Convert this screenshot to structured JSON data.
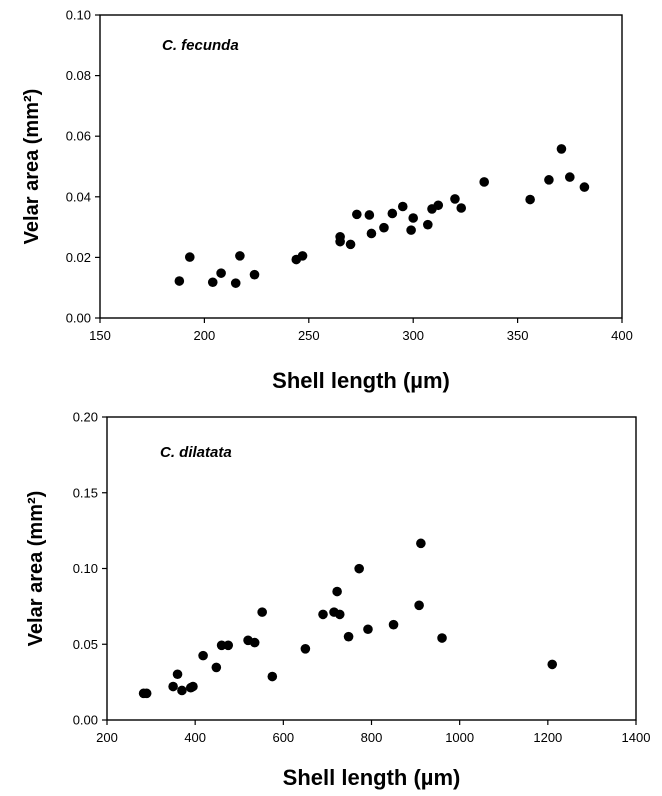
{
  "chart_data": [
    {
      "type": "scatter",
      "panel_label": "C. fecunda",
      "xlabel": "Shell length (µm)",
      "ylabel": "Velar area (mm²)",
      "xlim": [
        150,
        400
      ],
      "ylim": [
        0,
        0.1
      ],
      "xticks": [
        "150",
        "200",
        "250",
        "300",
        "350",
        "400"
      ],
      "yticks": [
        "0.00",
        "0.02",
        "0.04",
        "0.06",
        "0.08",
        "0.10"
      ],
      "grid": false,
      "points": [
        [
          188,
          0.0122
        ],
        [
          193,
          0.0201
        ],
        [
          204,
          0.0118
        ],
        [
          208,
          0.0148
        ],
        [
          215,
          0.0115
        ],
        [
          217,
          0.0205
        ],
        [
          224,
          0.0143
        ],
        [
          244,
          0.0193
        ],
        [
          247,
          0.0205
        ],
        [
          265,
          0.0268
        ],
        [
          265,
          0.0252
        ],
        [
          270,
          0.0243
        ],
        [
          273,
          0.0342
        ],
        [
          279,
          0.034
        ],
        [
          280,
          0.0279
        ],
        [
          286,
          0.0298
        ],
        [
          290,
          0.0345
        ],
        [
          295,
          0.0368
        ],
        [
          299,
          0.029
        ],
        [
          300,
          0.033
        ],
        [
          307,
          0.0308
        ],
        [
          309,
          0.036
        ],
        [
          312,
          0.0372
        ],
        [
          320,
          0.0393
        ],
        [
          323,
          0.0363
        ],
        [
          334,
          0.0449
        ],
        [
          356,
          0.0391
        ],
        [
          365,
          0.0456
        ],
        [
          371,
          0.0558
        ],
        [
          375,
          0.0465
        ],
        [
          382,
          0.0432
        ]
      ]
    },
    {
      "type": "scatter",
      "panel_label": "C. dilatata",
      "xlabel": "Shell length (µm)",
      "ylabel": "Velar area (mm²)",
      "xlim": [
        200,
        1400
      ],
      "ylim": [
        0,
        0.2
      ],
      "xticks": [
        "200",
        "400",
        "600",
        "800",
        "1000",
        "1200",
        "1400"
      ],
      "yticks": [
        "0.00",
        "0.05",
        "0.10",
        "0.15",
        "0.20"
      ],
      "grid": false,
      "points": [
        [
          283,
          0.0176
        ],
        [
          290,
          0.0176
        ],
        [
          350,
          0.0221
        ],
        [
          360,
          0.0302
        ],
        [
          370,
          0.0195
        ],
        [
          390,
          0.0213
        ],
        [
          395,
          0.0221
        ],
        [
          418,
          0.0425
        ],
        [
          448,
          0.0347
        ],
        [
          460,
          0.0493
        ],
        [
          475,
          0.0493
        ],
        [
          520,
          0.0526
        ],
        [
          535,
          0.0511
        ],
        [
          552,
          0.0712
        ],
        [
          575,
          0.0287
        ],
        [
          650,
          0.047
        ],
        [
          690,
          0.0697
        ],
        [
          715,
          0.0712
        ],
        [
          722,
          0.0848
        ],
        [
          728,
          0.0697
        ],
        [
          748,
          0.055
        ],
        [
          772,
          0.0999
        ],
        [
          792,
          0.0599
        ],
        [
          850,
          0.0629
        ],
        [
          908,
          0.0757
        ],
        [
          912,
          0.1166
        ],
        [
          960,
          0.0541
        ],
        [
          1210,
          0.0367
        ]
      ]
    }
  ]
}
